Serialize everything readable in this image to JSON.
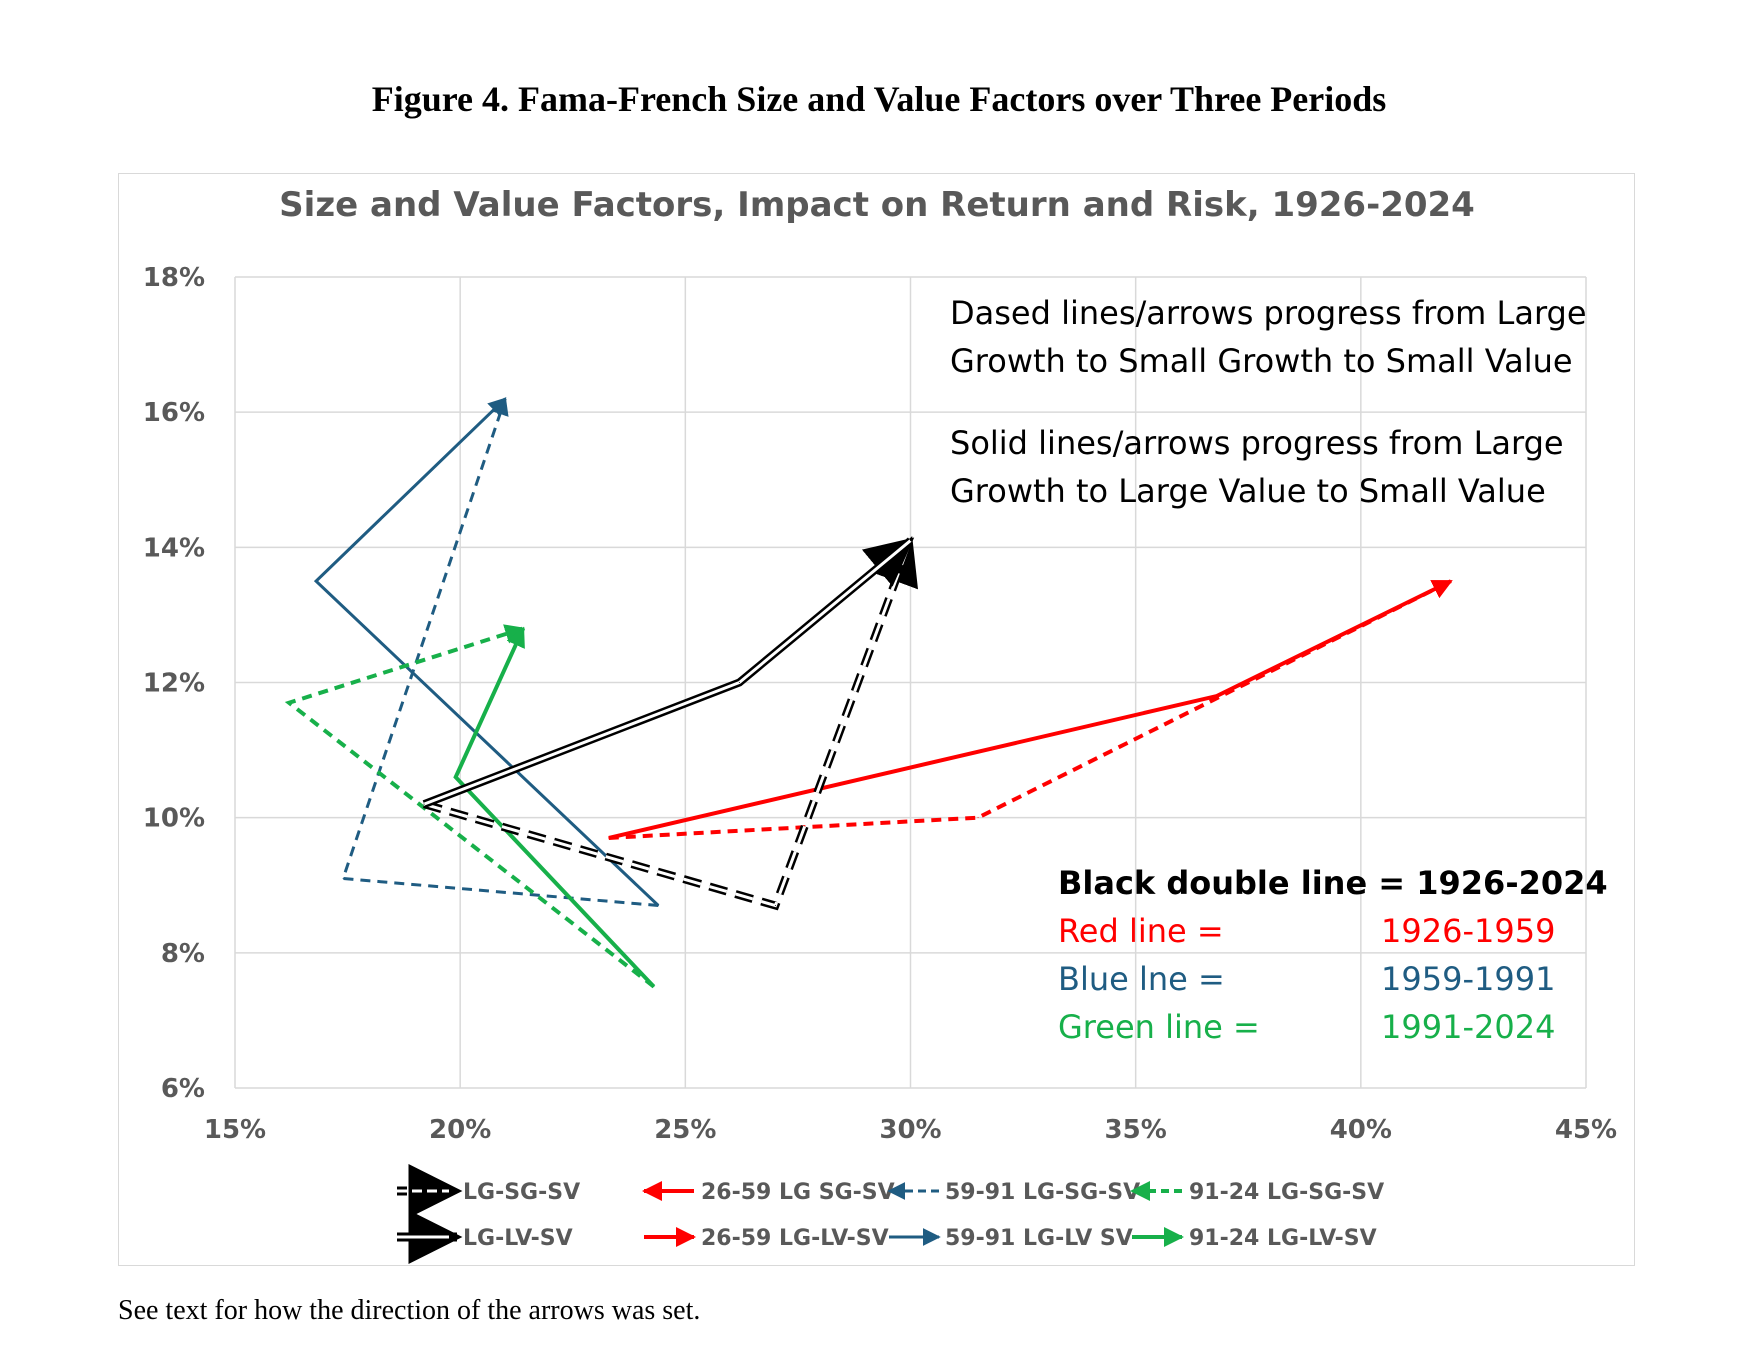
{
  "figure_title": "Figure 4.  Fama-French Size and Value Factors over Three Periods",
  "caption": "See text for how the direction of the arrows was set.",
  "colors": {
    "red": "#ff0000",
    "blue": "#1f5c82",
    "green": "#17b04a",
    "black": "#000000",
    "grid": "#d9d9d9",
    "axis_text": "#595959"
  },
  "annotations": {
    "dashed_line1": "Dased lines/arrows progress from Large",
    "dashed_line2": "Growth to Small Growth to Small Value",
    "solid_line1": "Solid lines/arrows progress from Large",
    "solid_line2": "Growth to Large Value to Small Value"
  },
  "color_key": {
    "black_label": "Black double line = 1926-2024",
    "red_label": "Red line =",
    "red_period": "1926-1959",
    "blue_label": "Blue lne =",
    "blue_period": "1959-1991",
    "green_label": "Green line =",
    "green_period": "1991-2024"
  },
  "legend": {
    "black_dashed": "LG-SG-SV",
    "black_solid": "LG-LV-SV",
    "red_dashed": "26-59 LG SG-SV",
    "red_solid": "26-59 LG-LV-SV",
    "blue_dashed": "59-91 LG-SG-SV",
    "blue_solid": "59-91 LG-LV SV",
    "green_dashed": "91-24 LG-SG-SV",
    "green_solid": "91-24 LG-LV-SV"
  },
  "chart_data": {
    "type": "line",
    "title": "Size and Value Factors, Impact on Return and Risk, 1926-2024",
    "xlabel": "",
    "ylabel": "",
    "xlim": [
      0.15,
      0.45
    ],
    "ylim": [
      0.06,
      0.18
    ],
    "x_ticks": [
      "15%",
      "20%",
      "25%",
      "30%",
      "35%",
      "40%",
      "45%"
    ],
    "y_ticks": [
      "6%",
      "8%",
      "10%",
      "12%",
      "14%",
      "16%",
      "18%"
    ],
    "grid": true,
    "series": [
      {
        "name": "LG-SG-SV",
        "color": "black",
        "style": "double-dashed",
        "points": [
          [
            0.192,
            0.102
          ],
          [
            0.27,
            0.087
          ],
          [
            0.3,
            0.141
          ]
        ]
      },
      {
        "name": "LG-LV-SV",
        "color": "black",
        "style": "double-solid",
        "points": [
          [
            0.192,
            0.102
          ],
          [
            0.262,
            0.12
          ],
          [
            0.3,
            0.141
          ]
        ]
      },
      {
        "name": "26-59 LG SG-SV",
        "color": "red",
        "style": "dashed",
        "points": [
          [
            0.233,
            0.097
          ],
          [
            0.315,
            0.1
          ],
          [
            0.42,
            0.135
          ]
        ]
      },
      {
        "name": "26-59 LG-LV-SV",
        "color": "red",
        "style": "solid",
        "points": [
          [
            0.233,
            0.097
          ],
          [
            0.368,
            0.118
          ],
          [
            0.42,
            0.135
          ]
        ]
      },
      {
        "name": "59-91 LG-SG-SV",
        "color": "blue",
        "style": "dashed",
        "points": [
          [
            0.244,
            0.087
          ],
          [
            0.174,
            0.091
          ],
          [
            0.21,
            0.162
          ]
        ]
      },
      {
        "name": "59-91 LG-LV SV",
        "color": "blue",
        "style": "solid",
        "points": [
          [
            0.244,
            0.087
          ],
          [
            0.168,
            0.135
          ],
          [
            0.21,
            0.162
          ]
        ]
      },
      {
        "name": "91-24 LG-SG-SV",
        "color": "green",
        "style": "dashed",
        "points": [
          [
            0.243,
            0.075
          ],
          [
            0.162,
            0.117
          ],
          [
            0.214,
            0.128
          ]
        ]
      },
      {
        "name": "91-24 LG-LV-SV",
        "color": "green",
        "style": "solid",
        "points": [
          [
            0.243,
            0.075
          ],
          [
            0.199,
            0.106
          ],
          [
            0.214,
            0.128
          ]
        ]
      }
    ]
  }
}
